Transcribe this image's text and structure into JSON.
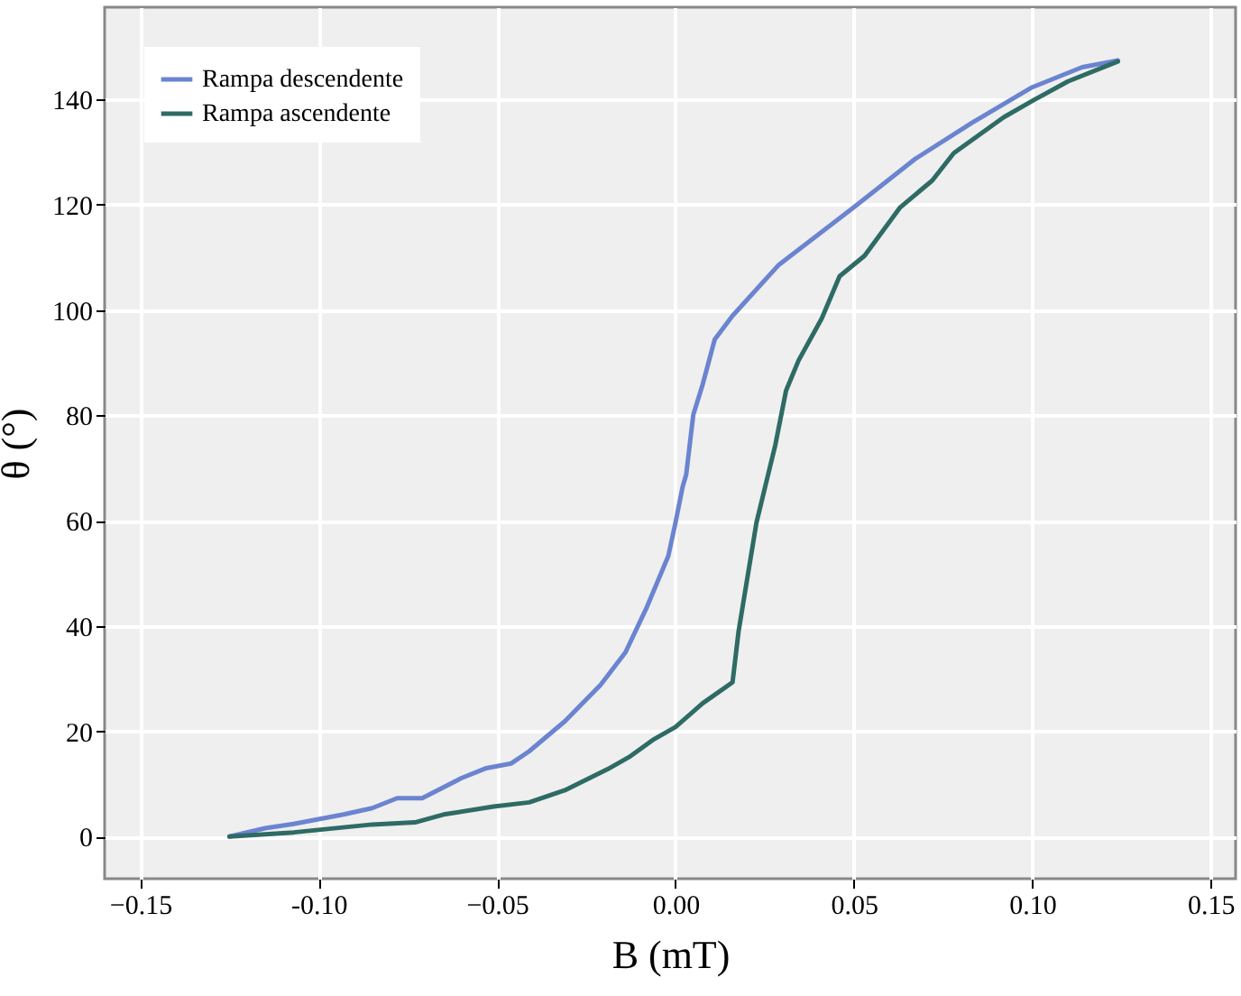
{
  "chart_data": {
    "type": "line",
    "xlabel": "B (mT)",
    "ylabel": "θ (°)",
    "xlim": [
      -0.16,
      0.157
    ],
    "ylim": [
      -8,
      157.5
    ],
    "xticks": [
      -0.15,
      {
        "value": -0.1,
        "label": "-0.10"
      },
      -0.05,
      {
        "value": 0,
        "label": "0.00"
      },
      0.05,
      {
        "value": 0.1,
        "label": "0.10"
      },
      0.15
    ],
    "yticks": [
      0,
      20,
      40,
      60,
      80,
      100,
      120,
      140
    ],
    "grid": true,
    "legend": "top left",
    "line_style": "solid",
    "marker": "none",
    "series": [
      {
        "name": "Rampa descendente",
        "color": "#6b84d0",
        "x": [
          -0.125,
          -0.115,
          -0.107,
          -0.093,
          -0.085,
          -0.078,
          -0.071,
          -0.06,
          -0.053,
          -0.046,
          -0.041,
          -0.031,
          -0.021,
          -0.014,
          -0.008,
          -0.002,
          0.0,
          0.002,
          0.003,
          0.005,
          0.0076,
          0.011,
          0.016,
          0.029,
          0.05,
          0.067,
          0.083,
          0.1,
          0.114,
          0.124
        ],
        "values": [
          0,
          1.6,
          2.4,
          4.2,
          5.4,
          7.3,
          7.3,
          11.1,
          13,
          13.9,
          16.2,
          21.9,
          28.8,
          35,
          43.6,
          53.3,
          59.6,
          66.4,
          68.7,
          80.1,
          85.8,
          94.4,
          98.9,
          108.6,
          119.5,
          128.6,
          135.5,
          142.3,
          146.1,
          147.4
        ]
      },
      {
        "name": "Rampa ascendente",
        "color": "#2e6b64",
        "x": [
          -0.125,
          -0.107,
          -0.085,
          -0.073,
          -0.065,
          -0.051,
          -0.041,
          -0.031,
          -0.019,
          -0.013,
          -0.006,
          0.0,
          0.0076,
          0.016,
          0.0177,
          0.0227,
          0.028,
          0.031,
          0.0345,
          0.041,
          0.046,
          0.053,
          0.063,
          0.072,
          0.078,
          0.092,
          0.1,
          0.11,
          0.124
        ],
        "values": [
          0,
          0.8,
          2.3,
          2.7,
          4.2,
          5.7,
          6.5,
          8.8,
          12.8,
          15.1,
          18.5,
          20.8,
          25.3,
          29.3,
          39,
          59.6,
          74.4,
          84.7,
          90.4,
          98.4,
          106.4,
          110.3,
          119.5,
          124.6,
          129.8,
          136.6,
          139.7,
          143.4,
          147.2
        ]
      }
    ]
  }
}
